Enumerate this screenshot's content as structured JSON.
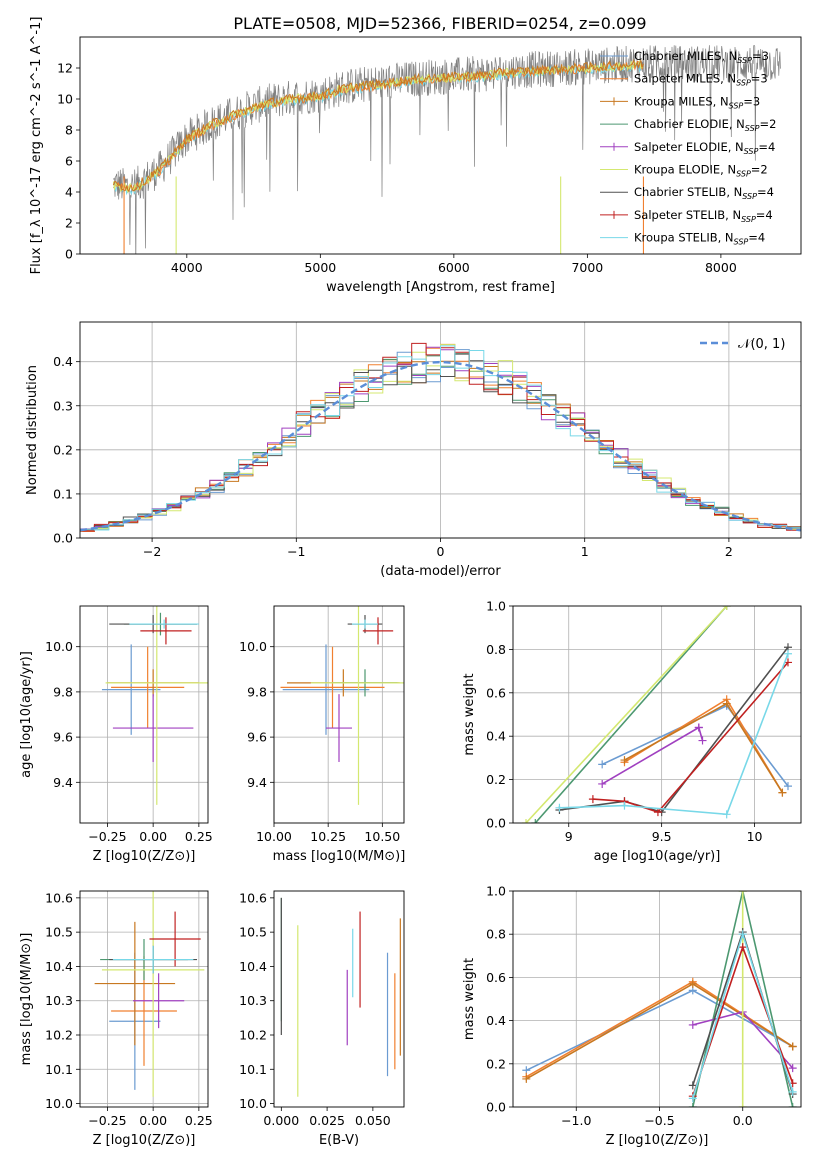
{
  "figure_title": "PLATE=0508, MJD=52366, FIBERID=0254, z=0.099",
  "model_colors": [
    "#6b9bd1",
    "#f08030",
    "#c87820",
    "#4c9870",
    "#a040c0",
    "#d4e870",
    "#505050",
    "#c02020",
    "#78d8e8"
  ],
  "model_labels": [
    "Chabrier MILES, N_SSP=3",
    "Salpeter MILES, N_SSP=3",
    "Kroupa MILES, N_SSP=3",
    "Chabrier ELODIE, N_SSP=2",
    "Salpeter ELODIE, N_SSP=4",
    "Kroupa ELODIE, N_SSP=2",
    "Chabrier STELIB, N_SSP=4",
    "Salpeter STELIB, N_SSP=4",
    "Kroupa STELIB, N_SSP=4"
  ],
  "chart_data": [
    {
      "id": "spectrum",
      "type": "line",
      "title": "PLATE=0508, MJD=52366, FIBERID=0254, z=0.099",
      "xlabel": "wavelength [Angstrom, rest frame]",
      "ylabel": "Flux [f_λ 10^-17 erg cm^-2 s^-1 A^-1]",
      "xlim": [
        3200,
        8600
      ],
      "ylim": [
        0,
        14
      ],
      "xticks": [
        4000,
        5000,
        6000,
        7000,
        8000
      ],
      "yticks": [
        0,
        2,
        4,
        6,
        8,
        10,
        12
      ],
      "data_color": "#808080",
      "continuum_x": [
        3450,
        3600,
        3800,
        4000,
        4200,
        4400,
        4600,
        4800,
        5000,
        5200,
        5400,
        5600,
        5800,
        6000,
        6200,
        6400,
        6600,
        6800,
        7000,
        7200,
        7400
      ],
      "continuum_y": [
        4.5,
        4.3,
        5.5,
        7.5,
        8.5,
        9.2,
        9.8,
        10.1,
        10.3,
        10.8,
        11.0,
        11.2,
        11.4,
        11.5,
        11.6,
        11.8,
        11.9,
        12.0,
        12.1,
        12.2,
        12.3
      ],
      "data_range": [
        3450,
        8450
      ],
      "legend_position": "upper right"
    },
    {
      "id": "residuals",
      "type": "line",
      "xlabel": "(data-model)/error",
      "ylabel": "Normed distribution",
      "xlim": [
        -2.5,
        2.5
      ],
      "ylim": [
        0,
        0.49
      ],
      "xticks": [
        -2,
        -1,
        0,
        1,
        2
      ],
      "xtick_labels": [
        "−2",
        "−1",
        "0",
        "1",
        "2"
      ],
      "yticks": [
        0.0,
        0.1,
        0.2,
        0.3,
        0.4
      ],
      "bin_width": 0.1,
      "reference_label": "𝒩(0, 1)",
      "reference_color": "#5b8ed8",
      "legend_position": "upper right",
      "grid": true
    },
    {
      "id": "z-age",
      "type": "scatter",
      "xlabel": "Z [log10(Z/Z⊙)]",
      "ylabel": "age  [log10(age/yr)]",
      "xlim": [
        -0.4,
        0.3
      ],
      "ylim": [
        9.22,
        10.18
      ],
      "xticks": [
        -0.25,
        0.0,
        0.25
      ],
      "xtick_labels": [
        "−0.25",
        "0.00",
        "0.25"
      ],
      "yticks": [
        9.4,
        9.6,
        9.8,
        10.0
      ],
      "grid": true,
      "points": [
        {
          "x": -0.12,
          "y": 9.81,
          "xerr": 0.16,
          "yerr": 0.2
        },
        {
          "x": -0.03,
          "y": 9.82,
          "xerr": 0.2,
          "yerr": 0.18
        },
        {
          "x": 0.0,
          "y": 9.84,
          "xerr": 0.25,
          "yerr": 0.06
        },
        {
          "x": 0.04,
          "y": 10.1,
          "xerr": 0.2,
          "yerr": 0.05
        },
        {
          "x": 0.0,
          "y": 9.64,
          "xerr": 0.22,
          "yerr": 0.15
        },
        {
          "x": 0.02,
          "y": 9.84,
          "xerr": 0.28,
          "yerr": 0.54
        },
        {
          "x": 0.0,
          "y": 10.1,
          "xerr": 0.24,
          "yerr": 0.04
        },
        {
          "x": 0.07,
          "y": 10.07,
          "xerr": 0.14,
          "yerr": 0.06
        },
        {
          "x": 0.06,
          "y": 10.1,
          "xerr": 0.19,
          "yerr": 0.02
        }
      ]
    },
    {
      "id": "mass-age",
      "type": "scatter",
      "xlabel": "mass [log10(M/M⊙)]",
      "ylabel": "",
      "xlim": [
        10.0,
        10.6
      ],
      "ylim": [
        9.22,
        10.18
      ],
      "xticks": [
        10.0,
        10.25,
        10.5
      ],
      "xtick_labels": [
        "10.00",
        "10.25",
        "10.50"
      ],
      "yticks": [
        9.4,
        9.6,
        9.8,
        10.0
      ],
      "grid": true,
      "points": [
        {
          "x": 10.24,
          "y": 9.81,
          "xerr": 0.2,
          "yerr": 0.2
        },
        {
          "x": 10.27,
          "y": 9.82,
          "xerr": 0.24,
          "yerr": 0.18
        },
        {
          "x": 10.32,
          "y": 9.84,
          "xerr": 0.26,
          "yerr": 0.06
        },
        {
          "x": 10.42,
          "y": 9.84,
          "xerr": 0.15,
          "yerr": 0.06
        },
        {
          "x": 10.3,
          "y": 9.64,
          "xerr": 0.06,
          "yerr": 0.15
        },
        {
          "x": 10.39,
          "y": 9.84,
          "xerr": 0.22,
          "yerr": 0.54
        },
        {
          "x": 10.42,
          "y": 10.1,
          "xerr": 0.08,
          "yerr": 0.04
        },
        {
          "x": 10.48,
          "y": 10.07,
          "xerr": 0.07,
          "yerr": 0.06
        },
        {
          "x": 10.42,
          "y": 10.1,
          "xerr": 0.06,
          "yerr": 0.02
        }
      ]
    },
    {
      "id": "age-weight",
      "type": "line",
      "xlabel": "age  [log10(age/yr)]",
      "ylabel": "mass weight",
      "xlim": [
        8.7,
        10.25
      ],
      "ylim": [
        0,
        1.0
      ],
      "xticks": [
        9.0,
        9.5,
        10.0
      ],
      "yticks": [
        0.0,
        0.2,
        0.4,
        0.6,
        0.8,
        1.0
      ],
      "grid": true,
      "series": [
        {
          "x": [
            9.18,
            9.85,
            10.18
          ],
          "y": [
            0.27,
            0.54,
            0.17
          ]
        },
        {
          "x": [
            9.3,
            9.85,
            10.15
          ],
          "y": [
            0.28,
            0.57,
            0.14
          ]
        },
        {
          "x": [
            9.3,
            9.85,
            10.15
          ],
          "y": [
            0.29,
            0.55,
            0.14
          ]
        },
        {
          "x": [
            8.82,
            9.85
          ],
          "y": [
            0.0,
            1.0
          ]
        },
        {
          "x": [
            9.18,
            9.7,
            9.72,
            9.7
          ],
          "y": [
            0.18,
            0.44,
            0.38,
            0.44
          ]
        },
        {
          "x": [
            8.77,
            9.85
          ],
          "y": [
            0.0,
            1.0
          ]
        },
        {
          "x": [
            8.95,
            9.3,
            9.5,
            10.18
          ],
          "y": [
            0.06,
            0.1,
            0.05,
            0.81
          ]
        },
        {
          "x": [
            9.13,
            9.3,
            9.48,
            10.18
          ],
          "y": [
            0.11,
            0.1,
            0.05,
            0.74
          ]
        },
        {
          "x": [
            8.95,
            9.3,
            9.85,
            10.18
          ],
          "y": [
            0.07,
            0.08,
            0.04,
            0.78
          ]
        }
      ]
    },
    {
      "id": "z-mass",
      "type": "scatter",
      "xlabel": "Z [log10(Z/Z⊙)]",
      "ylabel": "mass [log10(M/M⊙)]",
      "xlim": [
        -0.4,
        0.3
      ],
      "ylim": [
        9.99,
        10.62
      ],
      "xticks": [
        -0.25,
        0.0,
        0.25
      ],
      "xtick_labels": [
        "−0.25",
        "0.00",
        "0.25"
      ],
      "yticks": [
        10.0,
        10.1,
        10.2,
        10.3,
        10.4,
        10.5,
        10.6
      ],
      "grid": true,
      "points": [
        {
          "x": -0.1,
          "y": 10.24,
          "xerr": 0.14,
          "yerr": 0.2
        },
        {
          "x": -0.05,
          "y": 10.27,
          "xerr": 0.18,
          "yerr": 0.16
        },
        {
          "x": -0.1,
          "y": 10.35,
          "xerr": 0.22,
          "yerr": 0.18
        },
        {
          "x": -0.05,
          "y": 10.42,
          "xerr": 0.24,
          "yerr": 0.06
        },
        {
          "x": 0.03,
          "y": 10.3,
          "xerr": 0.14,
          "yerr": 0.08
        },
        {
          "x": 0.0,
          "y": 10.39,
          "xerr": 0.28,
          "yerr": 0.37
        },
        {
          "x": 0.0,
          "y": 10.42,
          "xerr": 0.24,
          "yerr": 0.04
        },
        {
          "x": 0.12,
          "y": 10.48,
          "xerr": 0.14,
          "yerr": 0.08
        },
        {
          "x": 0.0,
          "y": 10.42,
          "xerr": 0.22,
          "yerr": 0.04
        }
      ]
    },
    {
      "id": "ebv-mass",
      "type": "scatter",
      "xlabel": "E(B-V)",
      "ylabel": "",
      "xlim": [
        -0.004,
        0.067
      ],
      "ylim": [
        9.99,
        10.62
      ],
      "xticks": [
        0.0,
        0.025,
        0.05
      ],
      "xtick_labels": [
        "0.000",
        "0.025",
        "0.050"
      ],
      "yticks": [
        10.0,
        10.1,
        10.2,
        10.3,
        10.4,
        10.5,
        10.6
      ],
      "grid": false,
      "points": [
        {
          "x": 0.058,
          "y": 10.26,
          "xerr": 0,
          "yerr": 0.18
        },
        {
          "x": 0.062,
          "y": 10.24,
          "xerr": 0,
          "yerr": 0.14
        },
        {
          "x": 0.065,
          "y": 10.34,
          "xerr": 0,
          "yerr": 0.2
        },
        {
          "x": 0.0,
          "y": 10.42,
          "xerr": 0,
          "yerr": 0.18
        },
        {
          "x": 0.036,
          "y": 10.28,
          "xerr": 0,
          "yerr": 0.11
        },
        {
          "x": 0.009,
          "y": 10.27,
          "xerr": 0,
          "yerr": 0.25
        },
        {
          "x": 0.0,
          "y": 10.4,
          "xerr": 0,
          "yerr": 0.2
        },
        {
          "x": 0.043,
          "y": 10.42,
          "xerr": 0,
          "yerr": 0.14
        },
        {
          "x": 0.039,
          "y": 10.41,
          "xerr": 0,
          "yerr": 0.1
        }
      ]
    },
    {
      "id": "z-weight",
      "type": "line",
      "xlabel": "Z [log10(Z/Z⊙)]",
      "ylabel": "mass weight",
      "xlim": [
        -1.38,
        0.35
      ],
      "ylim": [
        0,
        1.0
      ],
      "xticks": [
        -1.0,
        -0.5,
        0.0
      ],
      "xtick_labels": [
        "−1.0",
        "−0.5",
        "0.0"
      ],
      "yticks": [
        0.0,
        0.2,
        0.4,
        0.6,
        0.8,
        1.0
      ],
      "grid": true,
      "series": [
        {
          "x": [
            -1.3,
            -0.3,
            0.3
          ],
          "y": [
            0.17,
            0.54,
            0.28
          ]
        },
        {
          "x": [
            -1.3,
            -0.3,
            0.3
          ],
          "y": [
            0.14,
            0.58,
            0.28
          ]
        },
        {
          "x": [
            -1.3,
            -0.3,
            0.3
          ],
          "y": [
            0.13,
            0.57,
            0.28
          ]
        },
        {
          "x": [
            -0.3,
            0.0,
            0.3
          ],
          "y": [
            0.0,
            1.0,
            0.0
          ]
        },
        {
          "x": [
            -0.3,
            0.0,
            0.3
          ],
          "y": [
            0.38,
            0.44,
            0.18
          ]
        },
        {
          "x": [
            0.0,
            0.0
          ],
          "y": [
            0.0,
            1.0
          ]
        },
        {
          "x": [
            -0.3,
            0.0,
            0.3
          ],
          "y": [
            0.1,
            0.81,
            0.06
          ]
        },
        {
          "x": [
            -0.3,
            0.0,
            0.3
          ],
          "y": [
            0.05,
            0.74,
            0.11
          ]
        },
        {
          "x": [
            -0.3,
            0.0,
            0.3
          ],
          "y": [
            0.04,
            0.8,
            0.07
          ]
        }
      ]
    }
  ]
}
